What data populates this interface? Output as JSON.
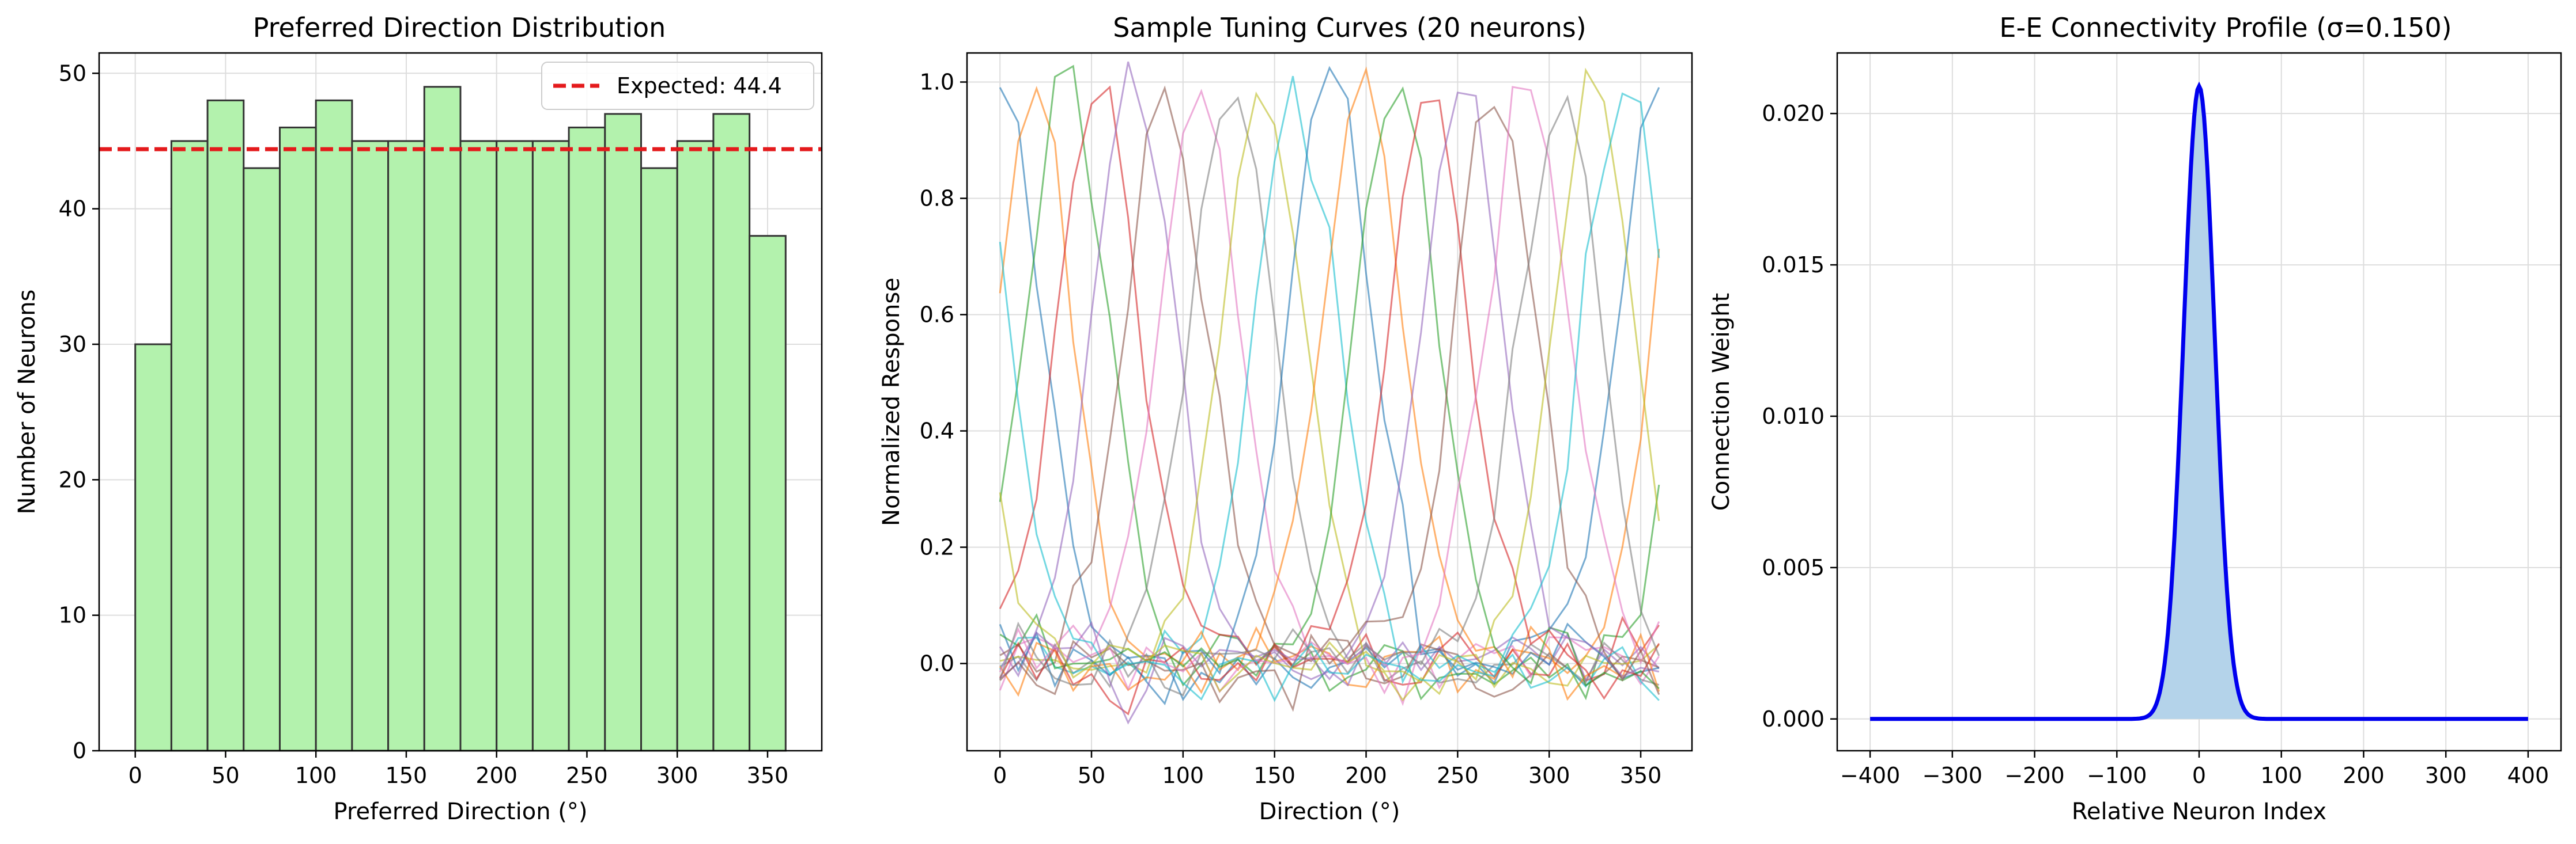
{
  "chart_data": [
    {
      "type": "bar",
      "title": "Preferred Direction Distribution",
      "xlabel": "Preferred Direction (°)",
      "ylabel": "Number of Neurons",
      "bin_edges": [
        0,
        20,
        40,
        60,
        80,
        100,
        120,
        140,
        160,
        180,
        200,
        220,
        240,
        260,
        280,
        300,
        320,
        340,
        360
      ],
      "values": [
        30,
        45,
        48,
        43,
        46,
        48,
        45,
        45,
        49,
        45,
        45,
        45,
        46,
        47,
        43,
        45,
        47,
        38
      ],
      "xlim": [
        -20,
        380
      ],
      "ylim": [
        0,
        51.5
      ],
      "xticks": [
        "0",
        "50",
        "100",
        "150",
        "200",
        "250",
        "300",
        "350"
      ],
      "yticks": [
        "0",
        "10",
        "20",
        "30",
        "40",
        "50"
      ],
      "bar_color": "#b3f2ad",
      "edge_color": "#333333",
      "reference_line": {
        "y": 44.4,
        "label": "Expected: 44.4",
        "color": "#e41a1c"
      },
      "legend": "top-right",
      "grid": true
    },
    {
      "type": "line",
      "title": "Sample Tuning Curves (20 neurons)",
      "xlabel": "Direction (°)",
      "ylabel": "Normalized Response",
      "x": [
        0,
        10,
        20,
        30,
        40,
        50,
        60,
        70,
        80,
        90,
        100,
        110,
        120,
        130,
        140,
        150,
        160,
        170,
        180,
        190,
        200,
        210,
        220,
        230,
        240,
        250,
        260,
        270,
        280,
        290,
        300,
        310,
        320,
        330,
        340,
        350,
        360
      ],
      "preferred_directions": [
        0,
        18,
        36,
        54,
        72,
        90,
        108,
        126,
        144,
        162,
        180,
        198,
        216,
        234,
        252,
        270,
        288,
        306,
        324,
        342
      ],
      "tuning_width_deg": 22,
      "noise_sd": 0.03,
      "xlim": [
        -18,
        378
      ],
      "ylim": [
        -0.15,
        1.05
      ],
      "xticks": [
        "0",
        "50",
        "100",
        "150",
        "200",
        "250",
        "300",
        "350"
      ],
      "yticks": [
        "0.0",
        "0.2",
        "0.4",
        "0.6",
        "0.8",
        "1.0"
      ],
      "line_colors": [
        "#1f77b4",
        "#ff7f0e",
        "#2ca02c",
        "#d62728",
        "#9467bd",
        "#8c564b",
        "#e377c2",
        "#7f7f7f",
        "#bcbd22",
        "#17becf"
      ],
      "grid": true
    },
    {
      "type": "area",
      "title": "E-E Connectivity Profile (σ=0.150)",
      "xlabel": "Relative Neuron Index",
      "ylabel": "Connection Weight",
      "gaussian": {
        "peak": 0.0209,
        "center": 0,
        "sd": 19
      },
      "x_range": [
        -400,
        400
      ],
      "xlim": [
        -440,
        440
      ],
      "ylim": [
        -0.00105,
        0.022
      ],
      "xticks": [
        "−400",
        "−300",
        "−200",
        "−100",
        "0",
        "100",
        "200",
        "300",
        "400"
      ],
      "yticks": [
        "0.000",
        "0.005",
        "0.010",
        "0.015",
        "0.020"
      ],
      "line_color": "#0000ee",
      "fill_color": "#b4d3ea",
      "grid": true
    }
  ]
}
